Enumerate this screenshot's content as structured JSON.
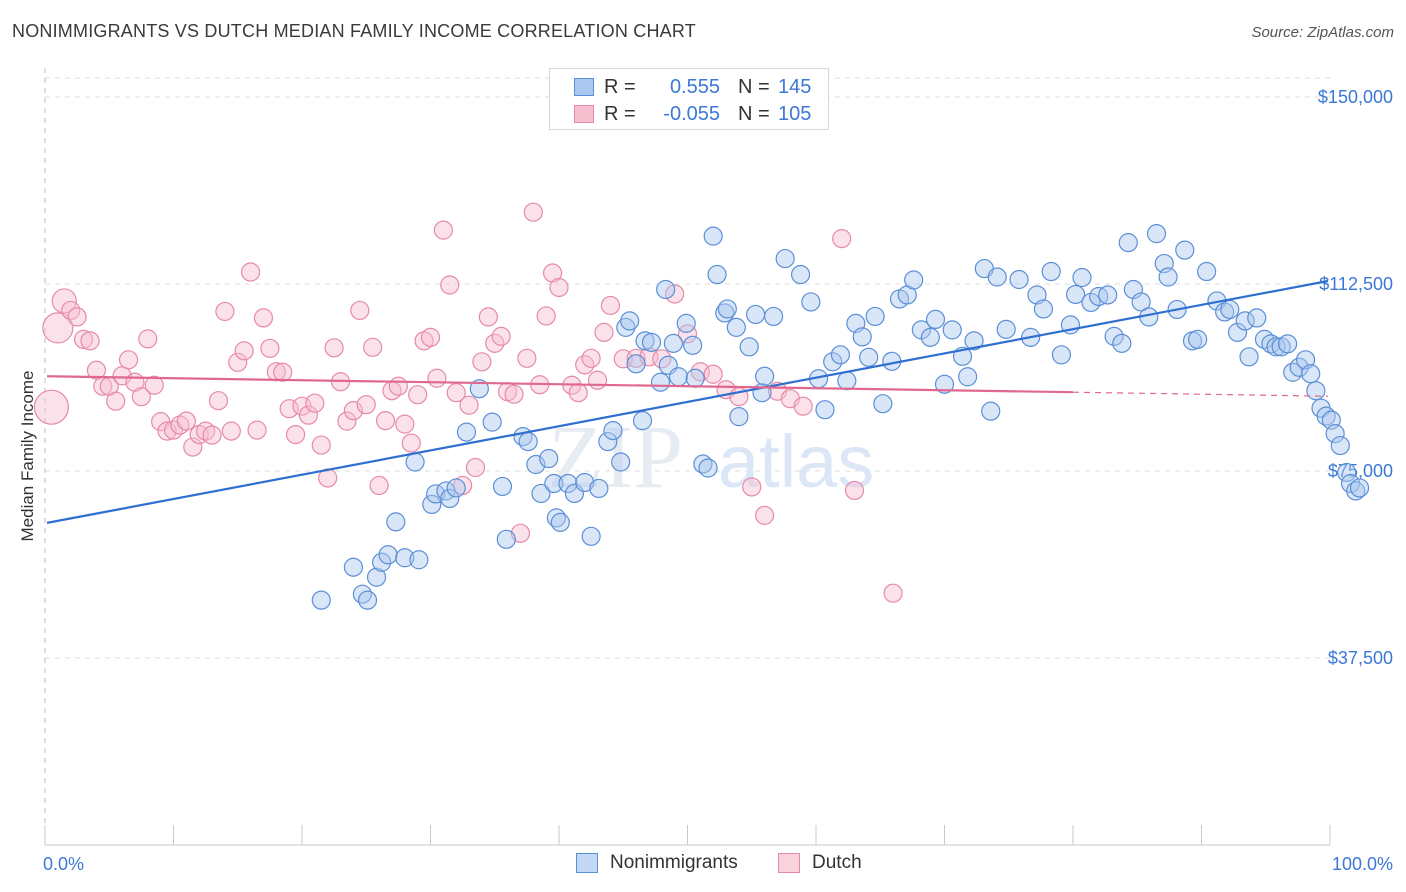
{
  "title": "NONIMMIGRANTS VS DUTCH MEDIAN FAMILY INCOME CORRELATION CHART",
  "source": "Source: ZipAtlas.com",
  "watermark": {
    "zip": "ZIP",
    "atlas": "atlas"
  },
  "colors": {
    "blue_stroke": "#5b8fd6",
    "blue_fill": "#aac8f0",
    "blue_line": "#2f6fd0",
    "pink_stroke": "#e68aa8",
    "pink_fill": "#f6bfd0",
    "pink_line": "#e0688f",
    "tick_text": "#3b78d8",
    "grid": "#dcdcdc"
  },
  "legend": {
    "rows": [
      {
        "r_label": "R =",
        "r_value": "0.555",
        "n_label": "N =",
        "n_value": "145",
        "series": "blue"
      },
      {
        "r_label": "R =",
        "r_value": "-0.055",
        "n_label": "N =",
        "n_value": "105",
        "series": "pink"
      }
    ]
  },
  "bottom_legend": [
    "Nonimmigrants",
    "Dutch"
  ],
  "chart_data": {
    "type": "scatter",
    "title": "NONIMMIGRANTS VS DUTCH MEDIAN FAMILY INCOME CORRELATION CHART",
    "xlabel": "",
    "ylabel": "Median Family Income",
    "xlim": [
      0,
      100
    ],
    "ylim": [
      0,
      150000
    ],
    "x_tick_labels": [
      "0.0%",
      "100.0%"
    ],
    "y_ticks": [
      37500,
      75000,
      112500,
      150000
    ],
    "y_tick_labels": [
      "$37,500",
      "$75,000",
      "$112,500",
      "$150,000"
    ],
    "grid": true,
    "series": [
      {
        "name": "Nonimmigrants",
        "color": "blue",
        "r": 0.555,
        "n": 145,
        "trend": {
          "x": [
            0,
            100
          ],
          "y": [
            64600,
            113100
          ],
          "dashed_from": null
        },
        "points": [
          [
            21.5,
            49100
          ],
          [
            24.0,
            55700
          ],
          [
            24.7,
            50300
          ],
          [
            25.1,
            49100
          ],
          [
            25.8,
            53700
          ],
          [
            26.2,
            56700
          ],
          [
            26.7,
            58200
          ],
          [
            27.3,
            64800
          ],
          [
            28.0,
            57600
          ],
          [
            29.1,
            57200
          ],
          [
            28.8,
            76800
          ],
          [
            30.1,
            68300
          ],
          [
            30.4,
            70400
          ],
          [
            31.2,
            71000
          ],
          [
            31.5,
            69500
          ],
          [
            32.0,
            71600
          ],
          [
            32.8,
            82800
          ],
          [
            33.8,
            91500
          ],
          [
            34.8,
            84800
          ],
          [
            35.6,
            71900
          ],
          [
            35.9,
            61300
          ],
          [
            37.2,
            81900
          ],
          [
            37.6,
            80900
          ],
          [
            38.2,
            76300
          ],
          [
            38.6,
            70500
          ],
          [
            39.2,
            77500
          ],
          [
            39.6,
            72500
          ],
          [
            39.8,
            65600
          ],
          [
            40.1,
            64700
          ],
          [
            40.7,
            72500
          ],
          [
            41.2,
            70500
          ],
          [
            42.0,
            72700
          ],
          [
            42.5,
            61900
          ],
          [
            43.1,
            71500
          ],
          [
            43.8,
            80900
          ],
          [
            44.2,
            83100
          ],
          [
            44.8,
            76800
          ],
          [
            45.2,
            103800
          ],
          [
            45.5,
            105100
          ],
          [
            46.0,
            96500
          ],
          [
            46.5,
            85100
          ],
          [
            46.7,
            101100
          ],
          [
            47.2,
            100800
          ],
          [
            47.9,
            92800
          ],
          [
            48.3,
            111400
          ],
          [
            48.5,
            96200
          ],
          [
            48.9,
            100600
          ],
          [
            49.3,
            93900
          ],
          [
            49.9,
            104600
          ],
          [
            50.4,
            100200
          ],
          [
            50.6,
            93600
          ],
          [
            51.2,
            76400
          ],
          [
            51.6,
            75600
          ],
          [
            52.0,
            122100
          ],
          [
            52.3,
            114400
          ],
          [
            52.9,
            106700
          ],
          [
            53.1,
            107500
          ],
          [
            53.8,
            103800
          ],
          [
            54.0,
            85900
          ],
          [
            54.8,
            99900
          ],
          [
            55.3,
            106400
          ],
          [
            55.8,
            90700
          ],
          [
            56.0,
            94000
          ],
          [
            56.7,
            106000
          ],
          [
            57.6,
            117600
          ],
          [
            58.8,
            114400
          ],
          [
            59.6,
            108900
          ],
          [
            60.2,
            93500
          ],
          [
            60.7,
            87300
          ],
          [
            61.3,
            96900
          ],
          [
            61.9,
            98300
          ],
          [
            62.4,
            93100
          ],
          [
            63.1,
            104600
          ],
          [
            63.6,
            101900
          ],
          [
            64.1,
            97800
          ],
          [
            64.6,
            106000
          ],
          [
            65.2,
            88500
          ],
          [
            65.9,
            97000
          ],
          [
            66.5,
            109500
          ],
          [
            67.1,
            110300
          ],
          [
            67.6,
            113300
          ],
          [
            68.2,
            103300
          ],
          [
            68.9,
            101800
          ],
          [
            69.3,
            105400
          ],
          [
            70.0,
            92400
          ],
          [
            70.6,
            103300
          ],
          [
            71.4,
            98000
          ],
          [
            71.8,
            93900
          ],
          [
            72.3,
            101100
          ],
          [
            73.1,
            115600
          ],
          [
            73.6,
            87000
          ],
          [
            74.1,
            113900
          ],
          [
            74.8,
            103400
          ],
          [
            75.8,
            113400
          ],
          [
            76.7,
            101800
          ],
          [
            77.2,
            110300
          ],
          [
            77.7,
            107500
          ],
          [
            78.3,
            115000
          ],
          [
            79.1,
            98300
          ],
          [
            79.8,
            104300
          ],
          [
            80.2,
            110400
          ],
          [
            80.7,
            113800
          ],
          [
            81.4,
            108800
          ],
          [
            82.0,
            110000
          ],
          [
            82.7,
            110300
          ],
          [
            83.2,
            102000
          ],
          [
            83.8,
            100600
          ],
          [
            84.3,
            120800
          ],
          [
            84.7,
            111400
          ],
          [
            85.3,
            108900
          ],
          [
            85.9,
            105900
          ],
          [
            86.5,
            122600
          ],
          [
            87.1,
            116600
          ],
          [
            87.4,
            113900
          ],
          [
            88.1,
            107400
          ],
          [
            88.7,
            119300
          ],
          [
            89.3,
            101100
          ],
          [
            89.7,
            101400
          ],
          [
            90.4,
            115000
          ],
          [
            91.2,
            109100
          ],
          [
            91.8,
            106900
          ],
          [
            92.2,
            107400
          ],
          [
            92.8,
            102800
          ],
          [
            93.4,
            105100
          ],
          [
            93.7,
            97900
          ],
          [
            94.3,
            105700
          ],
          [
            94.9,
            101400
          ],
          [
            95.4,
            100500
          ],
          [
            95.8,
            99900
          ],
          [
            96.2,
            99900
          ],
          [
            96.7,
            100500
          ],
          [
            97.1,
            94800
          ],
          [
            97.6,
            95800
          ],
          [
            98.1,
            97300
          ],
          [
            98.5,
            94500
          ],
          [
            98.9,
            91100
          ],
          [
            99.3,
            87600
          ],
          [
            99.7,
            86000
          ],
          [
            100.1,
            85200
          ],
          [
            100.4,
            82500
          ],
          [
            100.8,
            80100
          ],
          [
            101.3,
            74700
          ],
          [
            101.6,
            72500
          ],
          [
            102.0,
            71000
          ],
          [
            102.3,
            71600
          ]
        ]
      },
      {
        "name": "Dutch",
        "color": "pink",
        "r": -0.055,
        "n": 105,
        "trend": {
          "x": [
            0,
            100
          ],
          "y": [
            94000,
            90000
          ],
          "dashed_from": 80
        },
        "points": [
          [
            0.5,
            87800
          ],
          [
            1.0,
            103700
          ],
          [
            1.5,
            109100
          ],
          [
            2.0,
            107200
          ],
          [
            2.5,
            105900
          ],
          [
            3.0,
            101400
          ],
          [
            3.5,
            101100
          ],
          [
            4.0,
            95200
          ],
          [
            4.5,
            92000
          ],
          [
            5.0,
            92000
          ],
          [
            5.5,
            89000
          ],
          [
            6.0,
            94100
          ],
          [
            6.5,
            97300
          ],
          [
            7.0,
            92800
          ],
          [
            7.5,
            89900
          ],
          [
            8.0,
            101500
          ],
          [
            8.5,
            92200
          ],
          [
            9.0,
            84900
          ],
          [
            9.5,
            83000
          ],
          [
            10.0,
            83200
          ],
          [
            10.5,
            84200
          ],
          [
            11.0,
            85000
          ],
          [
            11.5,
            79800
          ],
          [
            12.0,
            82300
          ],
          [
            12.5,
            83000
          ],
          [
            13.0,
            82200
          ],
          [
            13.5,
            89100
          ],
          [
            14.0,
            107000
          ],
          [
            14.5,
            83000
          ],
          [
            15.0,
            96800
          ],
          [
            15.5,
            99100
          ],
          [
            16.0,
            114900
          ],
          [
            16.5,
            83200
          ],
          [
            17.0,
            105700
          ],
          [
            17.5,
            99600
          ],
          [
            18.0,
            94900
          ],
          [
            18.5,
            94800
          ],
          [
            19.0,
            87500
          ],
          [
            19.5,
            82300
          ],
          [
            20.0,
            88000
          ],
          [
            20.5,
            86200
          ],
          [
            21.0,
            88600
          ],
          [
            21.5,
            80200
          ],
          [
            22.0,
            73600
          ],
          [
            22.5,
            99700
          ],
          [
            23.0,
            92900
          ],
          [
            23.5,
            85000
          ],
          [
            24.0,
            87100
          ],
          [
            24.5,
            107200
          ],
          [
            25.0,
            88300
          ],
          [
            25.5,
            99800
          ],
          [
            26.0,
            72100
          ],
          [
            26.5,
            85100
          ],
          [
            27.0,
            91100
          ],
          [
            27.5,
            92000
          ],
          [
            28.0,
            84400
          ],
          [
            28.5,
            80600
          ],
          [
            29.0,
            90300
          ],
          [
            29.5,
            101100
          ],
          [
            30.0,
            101800
          ],
          [
            30.5,
            93600
          ],
          [
            31.0,
            123300
          ],
          [
            31.5,
            112300
          ],
          [
            32.0,
            90700
          ],
          [
            32.5,
            72100
          ],
          [
            33.0,
            88200
          ],
          [
            33.5,
            75700
          ],
          [
            34.0,
            96900
          ],
          [
            34.5,
            105900
          ],
          [
            35.0,
            100600
          ],
          [
            35.5,
            102000
          ],
          [
            36.0,
            90900
          ],
          [
            36.5,
            90400
          ],
          [
            37.0,
            62500
          ],
          [
            37.5,
            97600
          ],
          [
            38.0,
            126900
          ],
          [
            38.5,
            92300
          ],
          [
            39.0,
            106100
          ],
          [
            39.5,
            114700
          ],
          [
            40.0,
            111800
          ],
          [
            41.0,
            92200
          ],
          [
            41.5,
            90700
          ],
          [
            42.0,
            96300
          ],
          [
            42.5,
            97600
          ],
          [
            43.0,
            93200
          ],
          [
            43.5,
            102800
          ],
          [
            44.0,
            108200
          ],
          [
            45.0,
            97500
          ],
          [
            46.0,
            97600
          ],
          [
            47.0,
            97900
          ],
          [
            48.0,
            97500
          ],
          [
            49.0,
            110500
          ],
          [
            50.0,
            102500
          ],
          [
            51.0,
            94900
          ],
          [
            52.0,
            94400
          ],
          [
            53.0,
            91300
          ],
          [
            54.0,
            89900
          ],
          [
            55.0,
            71800
          ],
          [
            56.0,
            66100
          ],
          [
            57.0,
            91000
          ],
          [
            58.0,
            89500
          ],
          [
            59.0,
            88000
          ],
          [
            62.0,
            121600
          ],
          [
            63.0,
            71100
          ],
          [
            66.0,
            50500
          ]
        ]
      }
    ]
  }
}
